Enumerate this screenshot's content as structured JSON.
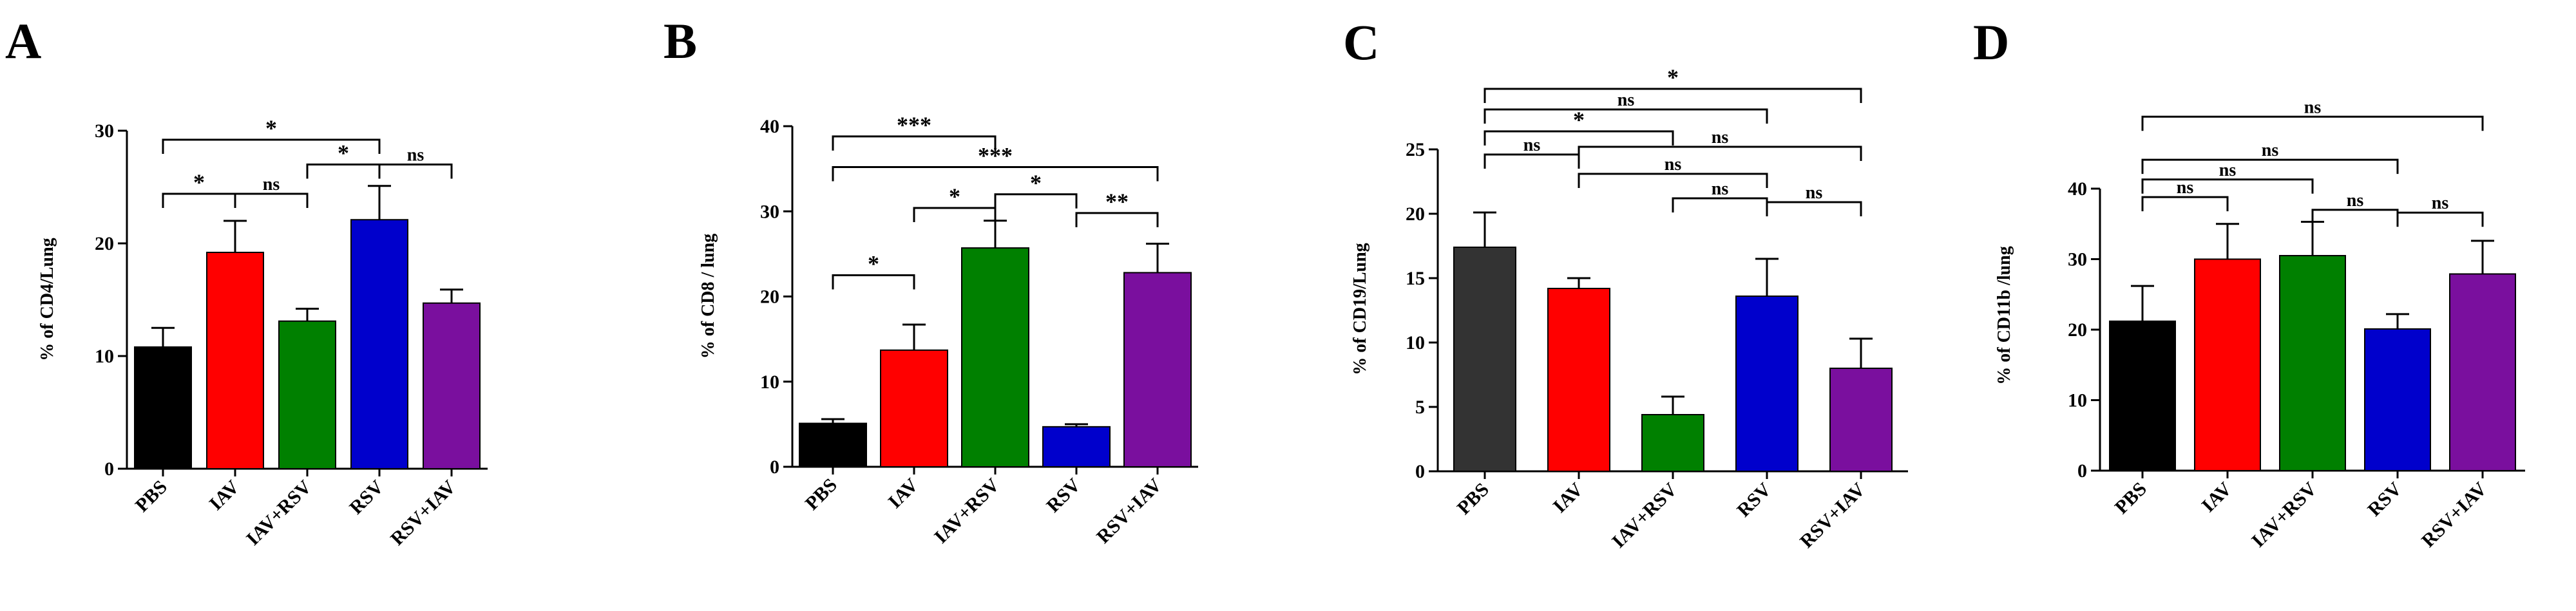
{
  "chart_data": [
    {
      "type": "bar",
      "panel_label": "A",
      "ylabel": "% of CD4/Lung",
      "ylim": [
        0,
        30
      ],
      "yticks": [
        "0",
        "10",
        "20",
        "30"
      ],
      "categories": [
        "PBS",
        "IAV",
        "IAV+RSV",
        "RSV",
        "RSV+IAV"
      ],
      "values": [
        10.8,
        19.2,
        13.1,
        22.1,
        14.7
      ],
      "errors": [
        1.7,
        2.8,
        1.1,
        3.0,
        1.2
      ],
      "colors": [
        "#000000",
        "#ff0000",
        "#008000",
        "#0000cc",
        "#7a0f9e"
      ],
      "brackets": [
        {
          "from": 0,
          "to": 3,
          "y": 29.2,
          "label": "*"
        },
        {
          "from": 0,
          "to": 1,
          "y": 24.4,
          "label": "*"
        },
        {
          "from": 1,
          "to": 2,
          "y": 24.4,
          "label": "ns"
        },
        {
          "from": 2,
          "to": 3,
          "y": 27.0,
          "label": "*"
        },
        {
          "from": 3,
          "to": 4,
          "y": 27.0,
          "label": "ns"
        }
      ]
    },
    {
      "type": "bar",
      "panel_label": "B",
      "ylabel": "% of CD8 / lung",
      "ylim": [
        0,
        40
      ],
      "yticks": [
        "0",
        "10",
        "20",
        "30",
        "40"
      ],
      "categories": [
        "PBS",
        "IAV",
        "IAV+RSV",
        "RSV",
        "RSV+IAV"
      ],
      "values": [
        5.1,
        13.7,
        25.7,
        4.7,
        22.8
      ],
      "errors": [
        0.5,
        3.0,
        3.2,
        0.3,
        3.4
      ],
      "colors": [
        "#000000",
        "#ff0000",
        "#008000",
        "#0000cc",
        "#7a0f9e"
      ],
      "brackets": [
        {
          "from": 0,
          "to": 2,
          "y": 38.8,
          "label": "***"
        },
        {
          "from": 0,
          "to": 4,
          "y": 35.2,
          "label": "***"
        },
        {
          "from": 2,
          "to": 3,
          "y": 32.0,
          "label": "*"
        },
        {
          "from": 1,
          "to": 2,
          "y": 30.4,
          "label": "*"
        },
        {
          "from": 3,
          "to": 4,
          "y": 29.8,
          "label": "**"
        },
        {
          "from": 0,
          "to": 1,
          "y": 22.5,
          "label": "*"
        }
      ]
    },
    {
      "type": "bar",
      "panel_label": "C",
      "ylabel": "% of CD19/Lung",
      "ylim": [
        0,
        25
      ],
      "yticks": [
        "0",
        "5",
        "10",
        "15",
        "20",
        "25"
      ],
      "categories": [
        "PBS",
        "IAV",
        "IAV+RSV",
        "RSV",
        "RSV+IAV"
      ],
      "values": [
        17.4,
        14.2,
        4.4,
        13.6,
        8.0
      ],
      "errors": [
        2.7,
        0.8,
        1.4,
        2.9,
        2.3
      ],
      "colors": [
        "#333333",
        "#ff0000",
        "#008000",
        "#0000cc",
        "#7a0f9e"
      ],
      "brackets": [
        {
          "from": 0,
          "to": 4,
          "y": 29.7,
          "label": "*"
        },
        {
          "from": 0,
          "to": 3,
          "y": 28.1,
          "label": "ns"
        },
        {
          "from": 0,
          "to": 2,
          "y": 26.4,
          "label": "*"
        },
        {
          "from": 1,
          "to": 4,
          "y": 25.2,
          "label": "ns"
        },
        {
          "from": 0,
          "to": 1,
          "y": 24.6,
          "label": "ns"
        },
        {
          "from": 1,
          "to": 3,
          "y": 23.1,
          "label": "ns"
        },
        {
          "from": 2,
          "to": 3,
          "y": 21.2,
          "label": "ns"
        },
        {
          "from": 3,
          "to": 4,
          "y": 20.9,
          "label": "ns"
        }
      ]
    },
    {
      "type": "bar",
      "panel_label": "D",
      "ylabel": "% of CD11b /lung",
      "ylim": [
        0,
        40
      ],
      "yticks": [
        "0",
        "10",
        "20",
        "30",
        "40"
      ],
      "categories": [
        "PBS",
        "IAV",
        "IAV+RSV",
        "RSV",
        "RSV+IAV"
      ],
      "values": [
        21.2,
        30.0,
        30.5,
        20.1,
        27.9
      ],
      "errors": [
        5.0,
        5.0,
        4.8,
        2.1,
        4.7
      ],
      "colors": [
        "#000000",
        "#ff0000",
        "#008000",
        "#0000cc",
        "#7a0f9e"
      ],
      "brackets": [
        {
          "from": 0,
          "to": 4,
          "y": 50.2,
          "label": "ns"
        },
        {
          "from": 0,
          "to": 3,
          "y": 44.1,
          "label": "ns"
        },
        {
          "from": 0,
          "to": 2,
          "y": 41.3,
          "label": "ns"
        },
        {
          "from": 0,
          "to": 1,
          "y": 38.8,
          "label": "ns"
        },
        {
          "from": 2,
          "to": 3,
          "y": 37.0,
          "label": "ns"
        },
        {
          "from": 3,
          "to": 4,
          "y": 36.6,
          "label": "ns"
        }
      ]
    }
  ]
}
